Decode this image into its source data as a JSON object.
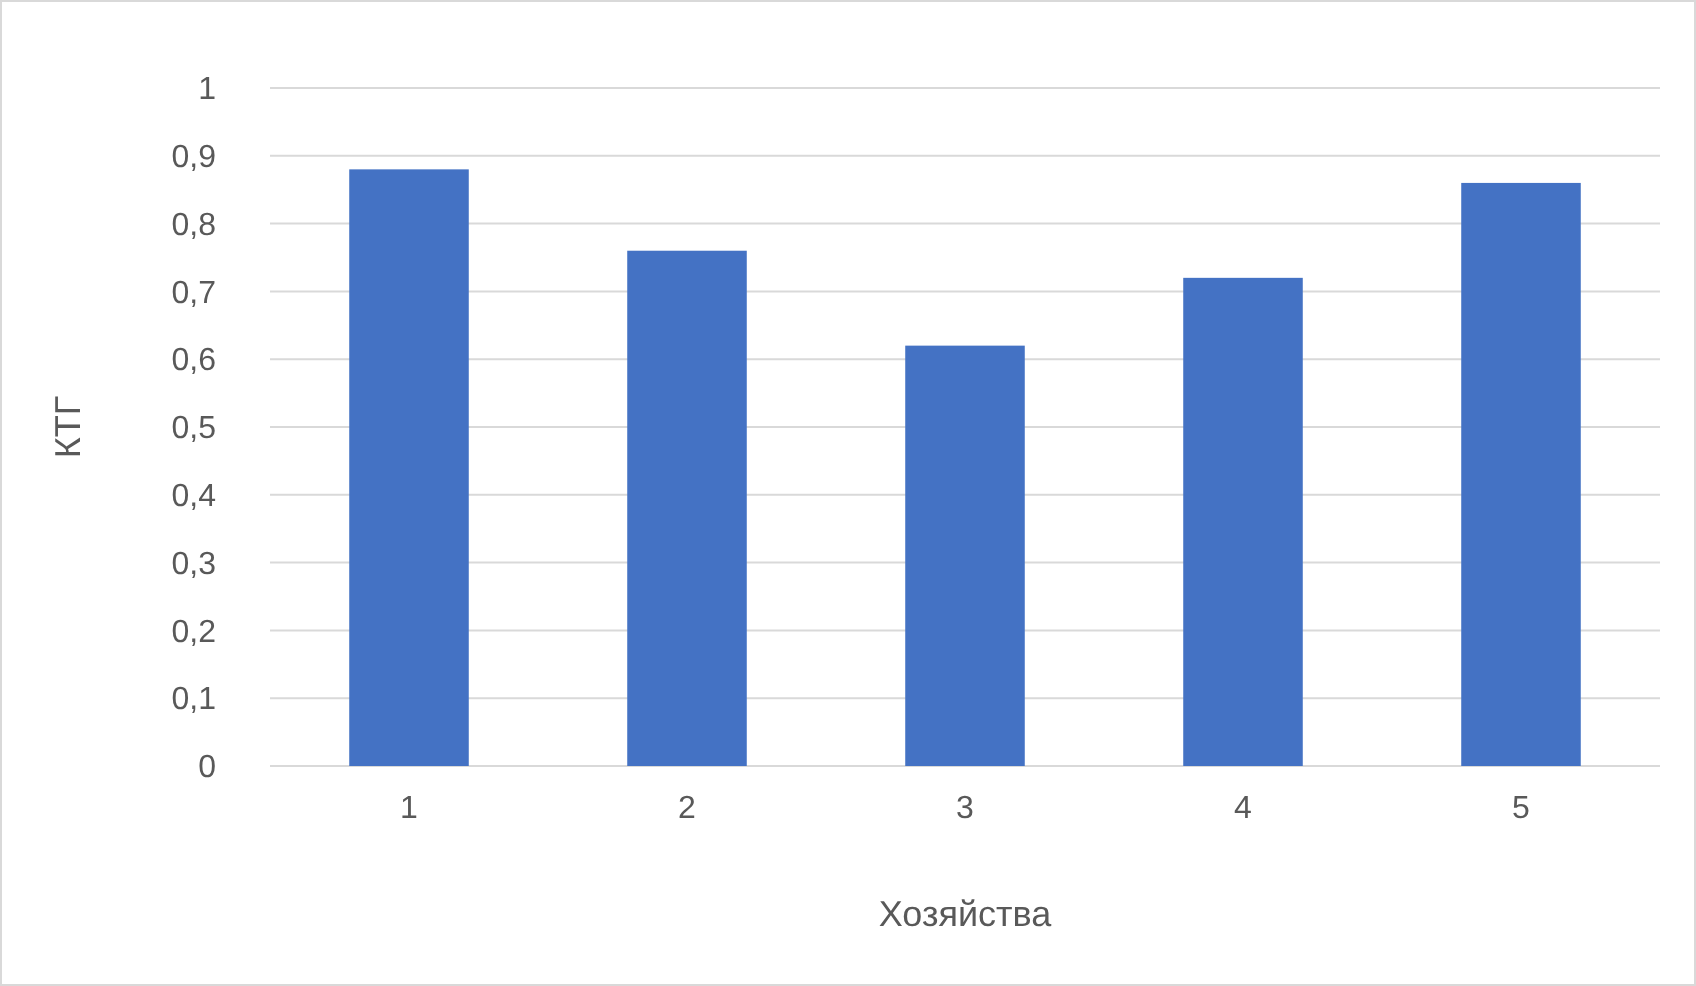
{
  "chart_data": {
    "type": "bar",
    "xlabel": "Хозяйства",
    "ylabel": "КТГ",
    "categories": [
      "1",
      "2",
      "3",
      "4",
      "5"
    ],
    "values": [
      0.88,
      0.76,
      0.62,
      0.72,
      0.86
    ],
    "color": "#4472c4",
    "ylim": [
      0,
      1
    ],
    "yticks": [
      0,
      {
        "value": 0.1,
        "label": "0,1"
      },
      {
        "value": 0.2,
        "label": "0,2"
      },
      {
        "value": 0.3,
        "label": "0,3"
      },
      {
        "value": 0.4,
        "label": "0,4"
      },
      {
        "value": 0.5,
        "label": "0,5"
      },
      {
        "value": 0.6,
        "label": "0,6"
      },
      {
        "value": 0.7,
        "label": "0,7"
      },
      {
        "value": 0.8,
        "label": "0,8"
      },
      {
        "value": 0.9,
        "label": "0,9"
      },
      1
    ],
    "grid": "y"
  }
}
